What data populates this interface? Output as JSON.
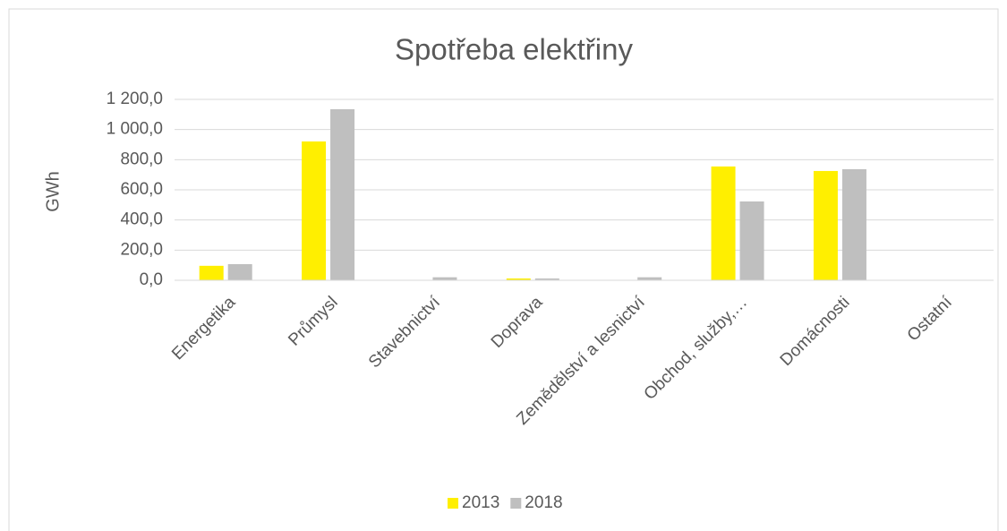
{
  "chart_data": {
    "type": "bar",
    "title": "Spotřeba elektřiny",
    "y_label": "GWh",
    "categories": [
      "Energetika",
      "Průmysl",
      "Stavebnictví",
      "Doprava",
      "Zemědělství a lesnictví",
      "Obchod, služby,…",
      "Domácnosti",
      "Ostatní"
    ],
    "series": [
      {
        "name": "2013",
        "color": "#ffef00",
        "values": [
          96,
          921,
          2,
          12,
          2,
          755,
          725,
          0
        ]
      },
      {
        "name": "2018",
        "color": "#bfbfbf",
        "values": [
          107,
          1135,
          20,
          12,
          20,
          523,
          737,
          0
        ]
      }
    ],
    "ylim": [
      0,
      1200
    ],
    "yticks": [
      {
        "value": 0,
        "label": "0,0"
      },
      {
        "value": 200,
        "label": "200,0"
      },
      {
        "value": 400,
        "label": "400,0"
      },
      {
        "value": 600,
        "label": "600,0"
      },
      {
        "value": 800,
        "label": "800,0"
      },
      {
        "value": 1000,
        "label": "1 000,0"
      },
      {
        "value": 1200,
        "label": "1 200,0"
      }
    ],
    "grid": true,
    "legend": "bottom"
  }
}
